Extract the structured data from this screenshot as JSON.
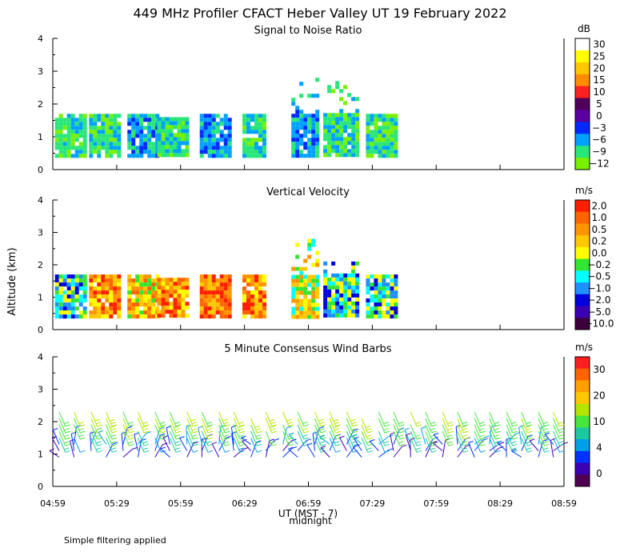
{
  "title": "449 MHz Profiler CFACT Heber Valley UT 19 February 2022",
  "ylabel": "Altitude (km)",
  "xlabel": "UT (MST - 7)",
  "xlabel_note": "midnight",
  "footer": "Simple filtering applied",
  "x_ticks": [
    "04:59",
    "05:29",
    "05:59",
    "06:29",
    "06:59",
    "07:29",
    "07:59",
    "08:29",
    "08:59"
  ],
  "y_ticks": [
    "0",
    "1",
    "2",
    "3",
    "4"
  ],
  "chart_data": [
    {
      "type": "heatmap",
      "title": "Signal to Noise Ratio",
      "units": "dB",
      "ylim": [
        0,
        4
      ],
      "colorbar": {
        "labels": [
          "30",
          "25",
          "20",
          "15",
          "10",
          "5",
          "0",
          "−3",
          "−6",
          "−9",
          "−12"
        ],
        "colors": [
          "#ffffff",
          "#ffff00",
          "#ffc800",
          "#ff8c00",
          "#ff2020",
          "#50005a",
          "#5a00a0",
          "#0028ff",
          "#00a0ff",
          "#28e678",
          "#78f000"
        ]
      },
      "data_blocks": [
        {
          "t0": "05:00",
          "t1": "05:14",
          "z0": 0.4,
          "z1": 1.7,
          "dominant": "−9"
        },
        {
          "t0": "05:16",
          "t1": "05:31",
          "z0": 0.4,
          "z1": 1.7,
          "dominant": "−9"
        },
        {
          "t0": "05:34",
          "t1": "05:48",
          "z0": 0.4,
          "z1": 1.7,
          "dominant": "−6"
        },
        {
          "t0": "05:48",
          "t1": "06:03",
          "z0": 0.4,
          "z1": 1.6,
          "dominant": "−9"
        },
        {
          "t0": "06:08",
          "t1": "06:22",
          "z0": 0.4,
          "z1": 1.7,
          "dominant": "−6"
        },
        {
          "t0": "06:28",
          "t1": "06:39",
          "z0": 0.4,
          "z1": 1.7,
          "dominant": "−9"
        },
        {
          "t0": "06:51",
          "t1": "07:03",
          "z0": 0.4,
          "z1": 2.8,
          "dominant": "−6"
        },
        {
          "t0": "07:06",
          "t1": "07:22",
          "z0": 0.4,
          "z1": 2.7,
          "dominant": "−9"
        },
        {
          "t0": "07:26",
          "t1": "07:41",
          "z0": 0.4,
          "z1": 1.7,
          "dominant": "−9"
        }
      ]
    },
    {
      "type": "heatmap",
      "title": "Vertical Velocity",
      "units": "m/s",
      "ylim": [
        0,
        4
      ],
      "colorbar": {
        "labels": [
          "2.0",
          "1.0",
          "0.5",
          "0.2",
          "0.0",
          "−0.2",
          "−0.5",
          "−1.0",
          "−2.0",
          "−5.0",
          "−10.0"
        ],
        "colors": [
          "#ff1e00",
          "#ff6400",
          "#ff9600",
          "#ffc800",
          "#ffff00",
          "#32e632",
          "#00ffff",
          "#1e90ff",
          "#0000dc",
          "#3c00b4",
          "#3c003c"
        ]
      },
      "data_blocks": [
        {
          "t0": "05:00",
          "t1": "05:14",
          "z0": 0.4,
          "z1": 1.7,
          "dominant": "−0.5"
        },
        {
          "t0": "05:16",
          "t1": "05:31",
          "z0": 0.4,
          "z1": 1.7,
          "dominant": "0.5"
        },
        {
          "t0": "05:34",
          "t1": "05:48",
          "z0": 0.4,
          "z1": 1.7,
          "dominant": "0.2"
        },
        {
          "t0": "05:48",
          "t1": "06:03",
          "z0": 0.4,
          "z1": 1.6,
          "dominant": "0.5"
        },
        {
          "t0": "06:08",
          "t1": "06:22",
          "z0": 0.4,
          "z1": 1.7,
          "dominant": "1.0"
        },
        {
          "t0": "06:28",
          "t1": "06:39",
          "z0": 0.4,
          "z1": 1.7,
          "dominant": "0.5"
        },
        {
          "t0": "06:51",
          "t1": "07:03",
          "z0": 0.4,
          "z1": 2.8,
          "dominant": "0.0"
        },
        {
          "t0": "07:06",
          "t1": "07:22",
          "z0": 0.4,
          "z1": 2.1,
          "dominant": "−0.5"
        },
        {
          "t0": "07:26",
          "t1": "07:41",
          "z0": 0.4,
          "z1": 1.7,
          "dominant": "−0.5"
        }
      ]
    },
    {
      "type": "scatter",
      "title": "5 Minute Consensus Wind Barbs",
      "units": "m/s",
      "ylim": [
        0,
        4
      ],
      "colorbar": {
        "labels": [
          "30",
          "20",
          "10",
          "4",
          "0"
        ],
        "colors": [
          "#ff1e1e",
          "#ff6400",
          "#ffa000",
          "#ffc800",
          "#b4e600",
          "#46e63c",
          "#1ec8a0",
          "#00a0e6",
          "#0032ff",
          "#3c00b4",
          "#500050"
        ]
      },
      "barb_columns": [
        "05:02",
        "05:09",
        "05:17",
        "05:24",
        "05:32",
        "05:39",
        "05:47",
        "05:54",
        "06:02",
        "06:09",
        "06:17",
        "06:24",
        "06:32",
        "06:39",
        "06:47",
        "06:54",
        "07:02",
        "07:09",
        "07:17",
        "07:24",
        "07:32",
        "07:39",
        "07:47",
        "07:54",
        "08:02",
        "08:09",
        "08:17",
        "08:24",
        "08:32",
        "08:39",
        "08:47",
        "08:54"
      ],
      "speed_profile": [
        {
          "z": 0.9,
          "speed": 3
        },
        {
          "z": 1.1,
          "speed": 4
        },
        {
          "z": 1.3,
          "speed": 6
        },
        {
          "z": 1.5,
          "speed": 8
        },
        {
          "z": 1.7,
          "speed": 10
        },
        {
          "z": 1.9,
          "speed": 11
        },
        {
          "z": 2.1,
          "speed": 12
        },
        {
          "z": 2.3,
          "speed": 12
        }
      ]
    }
  ]
}
